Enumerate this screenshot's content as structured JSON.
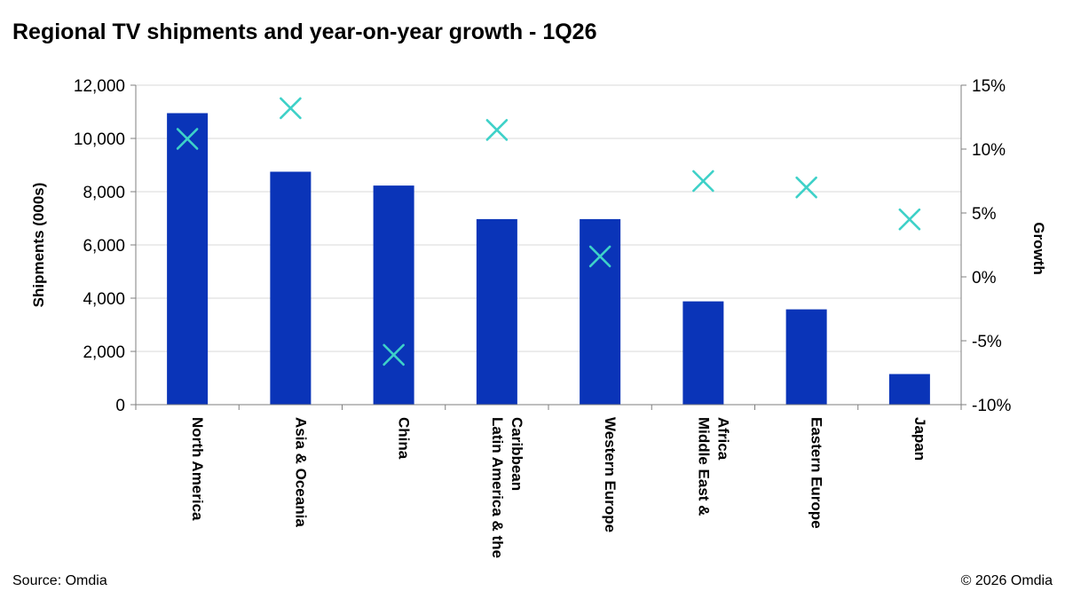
{
  "header": {
    "title": "Regional TV shipments and year-on-year growth - 1Q26"
  },
  "footer": {
    "source": "Source: Omdia",
    "copyright": "© 2026 Omdia"
  },
  "colors": {
    "bar": "#0A34B8",
    "marker": "#3DD1C8",
    "grid": "#D9D9D9",
    "axis": "#7F7F7F"
  },
  "chart_data": {
    "type": "bar",
    "title": "Regional TV shipments and year-on-year growth - 1Q26",
    "categories": [
      [
        "North America"
      ],
      [
        "Asia & Oceania"
      ],
      [
        "China"
      ],
      [
        "Latin America & the",
        "Caribbean"
      ],
      [
        "Western Europe"
      ],
      [
        "Middle East &",
        "Africa"
      ],
      [
        "Eastern Europe"
      ],
      [
        "Japan"
      ]
    ],
    "series": [
      {
        "type": "bar",
        "axis": "left",
        "values": [
          10950,
          8750,
          8230,
          6970,
          6970,
          3880,
          3580,
          1150
        ]
      },
      {
        "type": "scatter",
        "axis": "right",
        "marker": "x",
        "values": [
          10.8,
          13.2,
          -6.1,
          11.5,
          1.6,
          7.5,
          7.0,
          4.5
        ]
      }
    ],
    "yleft": {
      "label": "Shipments (000s)",
      "lim": [
        0,
        12000
      ],
      "ticks": [
        0,
        2000,
        4000,
        6000,
        8000,
        10000,
        12000
      ],
      "tick_labels": [
        "0",
        "2,000",
        "4,000",
        "6,000",
        "8,000",
        "10,000",
        "12,000"
      ]
    },
    "yright": {
      "label": "Growth",
      "lim": [
        -10,
        15
      ],
      "ticks": [
        -10,
        -5,
        0,
        5,
        10,
        15
      ],
      "tick_labels": [
        "-10%",
        "-5%",
        "0%",
        "5%",
        "10%",
        "15%"
      ]
    },
    "grid": true,
    "legend": "none"
  }
}
